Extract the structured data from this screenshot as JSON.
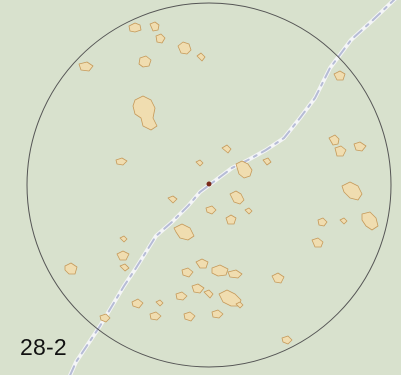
{
  "map": {
    "label": "28-2",
    "colors": {
      "background": "#d8e1cd",
      "road_main": "#f4f5f7",
      "road_dash": "#b6bcd6",
      "building_fill": "#f0ddb0",
      "building_stroke": "#c69a5a",
      "circle_stroke": "#555555",
      "center_dot": "#7a2a1a"
    },
    "icons": [
      "center-dot-icon"
    ]
  }
}
